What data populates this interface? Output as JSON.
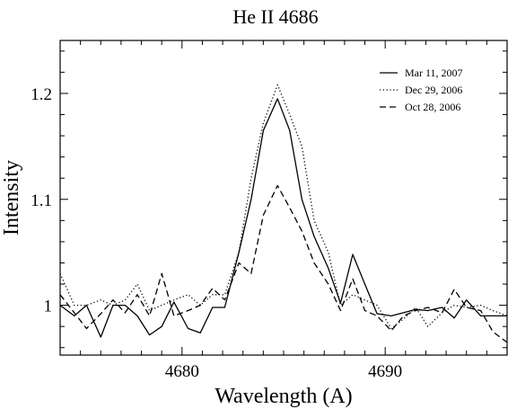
{
  "chart_data": {
    "type": "line",
    "title": "He II 4686",
    "xlabel": "Wavelength (A)",
    "ylabel": "Intensity",
    "xlim": [
      4674,
      4696
    ],
    "ylim": [
      0.953,
      1.25
    ],
    "x_ticks": [
      4680,
      4690
    ],
    "y_ticks": [
      1,
      1.1,
      1.2
    ],
    "y_tick_labels": [
      "1",
      "1.1",
      "1.2"
    ],
    "legend_position": "top-right",
    "series": [
      {
        "name": "Mar 11, 2007",
        "style": "solid",
        "x": [
          4674.0,
          4674.7,
          4675.3,
          4676.0,
          4676.6,
          4677.2,
          4677.8,
          4678.4,
          4679.0,
          4679.6,
          4680.3,
          4680.9,
          4681.5,
          4682.1,
          4682.8,
          4683.4,
          4684.0,
          4684.7,
          4685.3,
          4685.9,
          4686.5,
          4687.2,
          4687.8,
          4688.4,
          4689.0,
          4689.6,
          4690.3,
          4690.9,
          4691.5,
          4692.1,
          4692.8,
          4693.4,
          4694.0,
          4694.7,
          4695.3,
          4696.0
        ],
        "y": [
          1.0,
          0.99,
          1.0,
          0.97,
          1.0,
          1.0,
          0.99,
          0.972,
          0.98,
          1.003,
          0.978,
          0.974,
          0.998,
          0.998,
          1.05,
          1.1,
          1.165,
          1.195,
          1.165,
          1.1,
          1.065,
          1.035,
          1.002,
          1.048,
          1.02,
          0.992,
          0.99,
          0.993,
          0.996,
          0.995,
          0.998,
          0.988,
          1.005,
          0.99,
          0.99,
          0.99
        ]
      },
      {
        "name": "Dec 29, 2006",
        "style": "dotted",
        "x": [
          4674.0,
          4674.7,
          4675.3,
          4676.0,
          4676.6,
          4677.2,
          4677.8,
          4678.4,
          4679.0,
          4679.6,
          4680.3,
          4680.9,
          4681.5,
          4682.1,
          4682.8,
          4683.4,
          4684.0,
          4684.7,
          4685.3,
          4685.9,
          4686.5,
          4687.2,
          4687.8,
          4688.4,
          4689.0,
          4689.6,
          4690.3,
          4690.9,
          4691.5,
          4692.1,
          4692.8,
          4693.4,
          4694.0,
          4694.7,
          4695.3,
          4696.0
        ],
        "y": [
          1.03,
          1.0,
          1.0,
          1.005,
          1.0,
          1.005,
          1.02,
          0.995,
          1.0,
          1.005,
          1.01,
          1.0,
          1.01,
          1.01,
          1.05,
          1.12,
          1.172,
          1.208,
          1.18,
          1.15,
          1.08,
          1.05,
          1.0,
          1.01,
          1.005,
          1.0,
          0.978,
          0.987,
          0.998,
          0.98,
          0.993,
          1.0,
          0.998,
          1.0,
          0.995,
          0.99
        ]
      },
      {
        "name": "Oct 28, 2006",
        "style": "dashed",
        "x": [
          4674.0,
          4674.7,
          4675.3,
          4676.0,
          4676.6,
          4677.2,
          4677.8,
          4678.4,
          4679.0,
          4679.6,
          4680.3,
          4680.9,
          4681.5,
          4682.1,
          4682.8,
          4683.4,
          4684.0,
          4684.7,
          4685.3,
          4685.9,
          4686.5,
          4687.2,
          4687.8,
          4688.4,
          4689.0,
          4689.6,
          4690.3,
          4690.9,
          4691.5,
          4692.1,
          4692.8,
          4693.4,
          4694.0,
          4694.7,
          4695.3,
          4696.0
        ],
        "y": [
          1.01,
          0.993,
          0.978,
          0.992,
          1.005,
          0.993,
          1.01,
          0.99,
          1.03,
          0.99,
          0.995,
          1.0,
          1.016,
          1.005,
          1.04,
          1.03,
          1.085,
          1.113,
          1.092,
          1.07,
          1.04,
          1.02,
          0.995,
          1.025,
          0.995,
          0.99,
          0.976,
          0.99,
          0.995,
          0.998,
          0.993,
          1.015,
          0.998,
          0.995,
          0.975,
          0.965
        ]
      }
    ]
  }
}
